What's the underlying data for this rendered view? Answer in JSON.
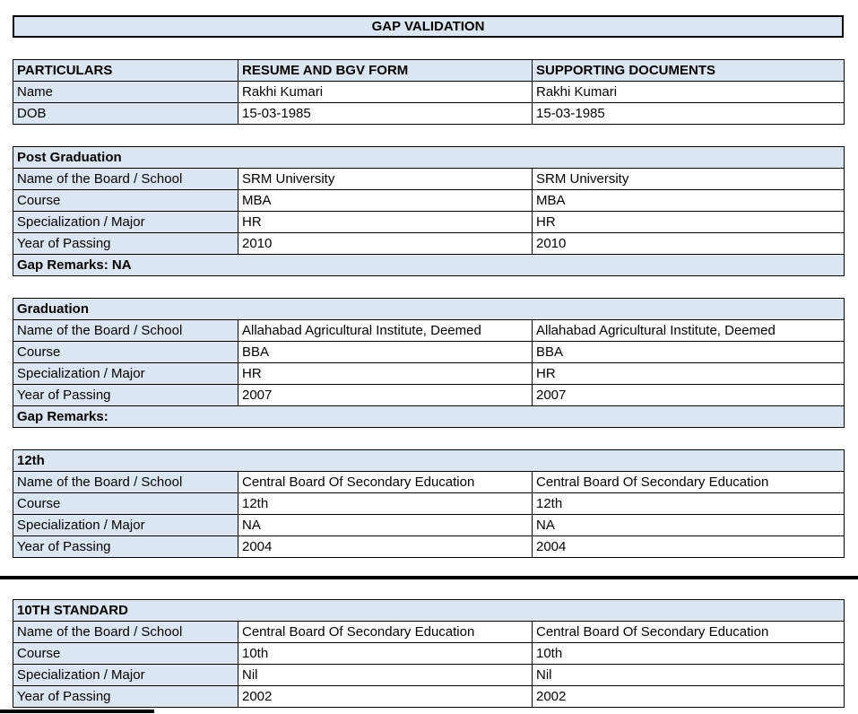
{
  "title": "GAP VALIDATION",
  "columns": [
    "PARTICULARS",
    "RESUME AND BGV FORM",
    "SUPPORTING DOCUMENTS"
  ],
  "particulars": {
    "rows": [
      {
        "label": "Name",
        "resume": "Rakhi Kumari",
        "supporting": "Rakhi Kumari"
      },
      {
        "label": "DOB",
        "resume": "15-03-1985",
        "supporting": "15-03-1985"
      }
    ]
  },
  "sections": [
    {
      "heading": "Post Graduation",
      "rows": [
        {
          "label": "Name of the Board / School",
          "resume": "SRM University",
          "supporting": "SRM University"
        },
        {
          "label": "Course",
          "resume": "MBA",
          "supporting": "MBA"
        },
        {
          "label": "Specialization / Major",
          "resume": "HR",
          "supporting": "HR"
        },
        {
          "label": "Year of Passing",
          "resume": "2010",
          "supporting": "2010"
        }
      ],
      "gap_remarks": "Gap Remarks: NA"
    },
    {
      "heading": "Graduation",
      "rows": [
        {
          "label": "Name of the Board / School",
          "resume": "Allahabad Agricultural Institute, Deemed",
          "supporting": "Allahabad Agricultural Institute, Deemed"
        },
        {
          "label": "Course",
          "resume": "BBA",
          "supporting": "BBA"
        },
        {
          "label": "Specialization / Major",
          "resume": "HR",
          "supporting": "HR"
        },
        {
          "label": "Year of Passing",
          "resume": "2007",
          "supporting": "2007"
        }
      ],
      "gap_remarks": "Gap Remarks:"
    },
    {
      "heading": "12th",
      "rows": [
        {
          "label": "Name of the Board / School",
          "resume": "Central Board Of Secondary Education",
          "supporting": "Central Board Of Secondary Education"
        },
        {
          "label": "Course",
          "resume": "12th",
          "supporting": "12th"
        },
        {
          "label": "Specialization / Major",
          "resume": "NA",
          "supporting": "NA"
        },
        {
          "label": "Year of Passing",
          "resume": "2004",
          "supporting": "2004"
        }
      ],
      "gap_remarks": null
    },
    {
      "heading": "10TH STANDARD",
      "rows": [
        {
          "label": "Name of the Board / School",
          "resume": "Central Board Of Secondary Education",
          "supporting": "Central Board Of Secondary Education"
        },
        {
          "label": "Course",
          "resume": "10th",
          "supporting": "10th"
        },
        {
          "label": "Specialization / Major",
          "resume": "Nil",
          "supporting": "Nil"
        },
        {
          "label": "Year of Passing",
          "resume": "2002",
          "supporting": "2002"
        }
      ],
      "gap_remarks": null
    }
  ],
  "colors": {
    "header_bg": "#dce6f1",
    "border": "#000000",
    "page_break_line": "#000000"
  }
}
